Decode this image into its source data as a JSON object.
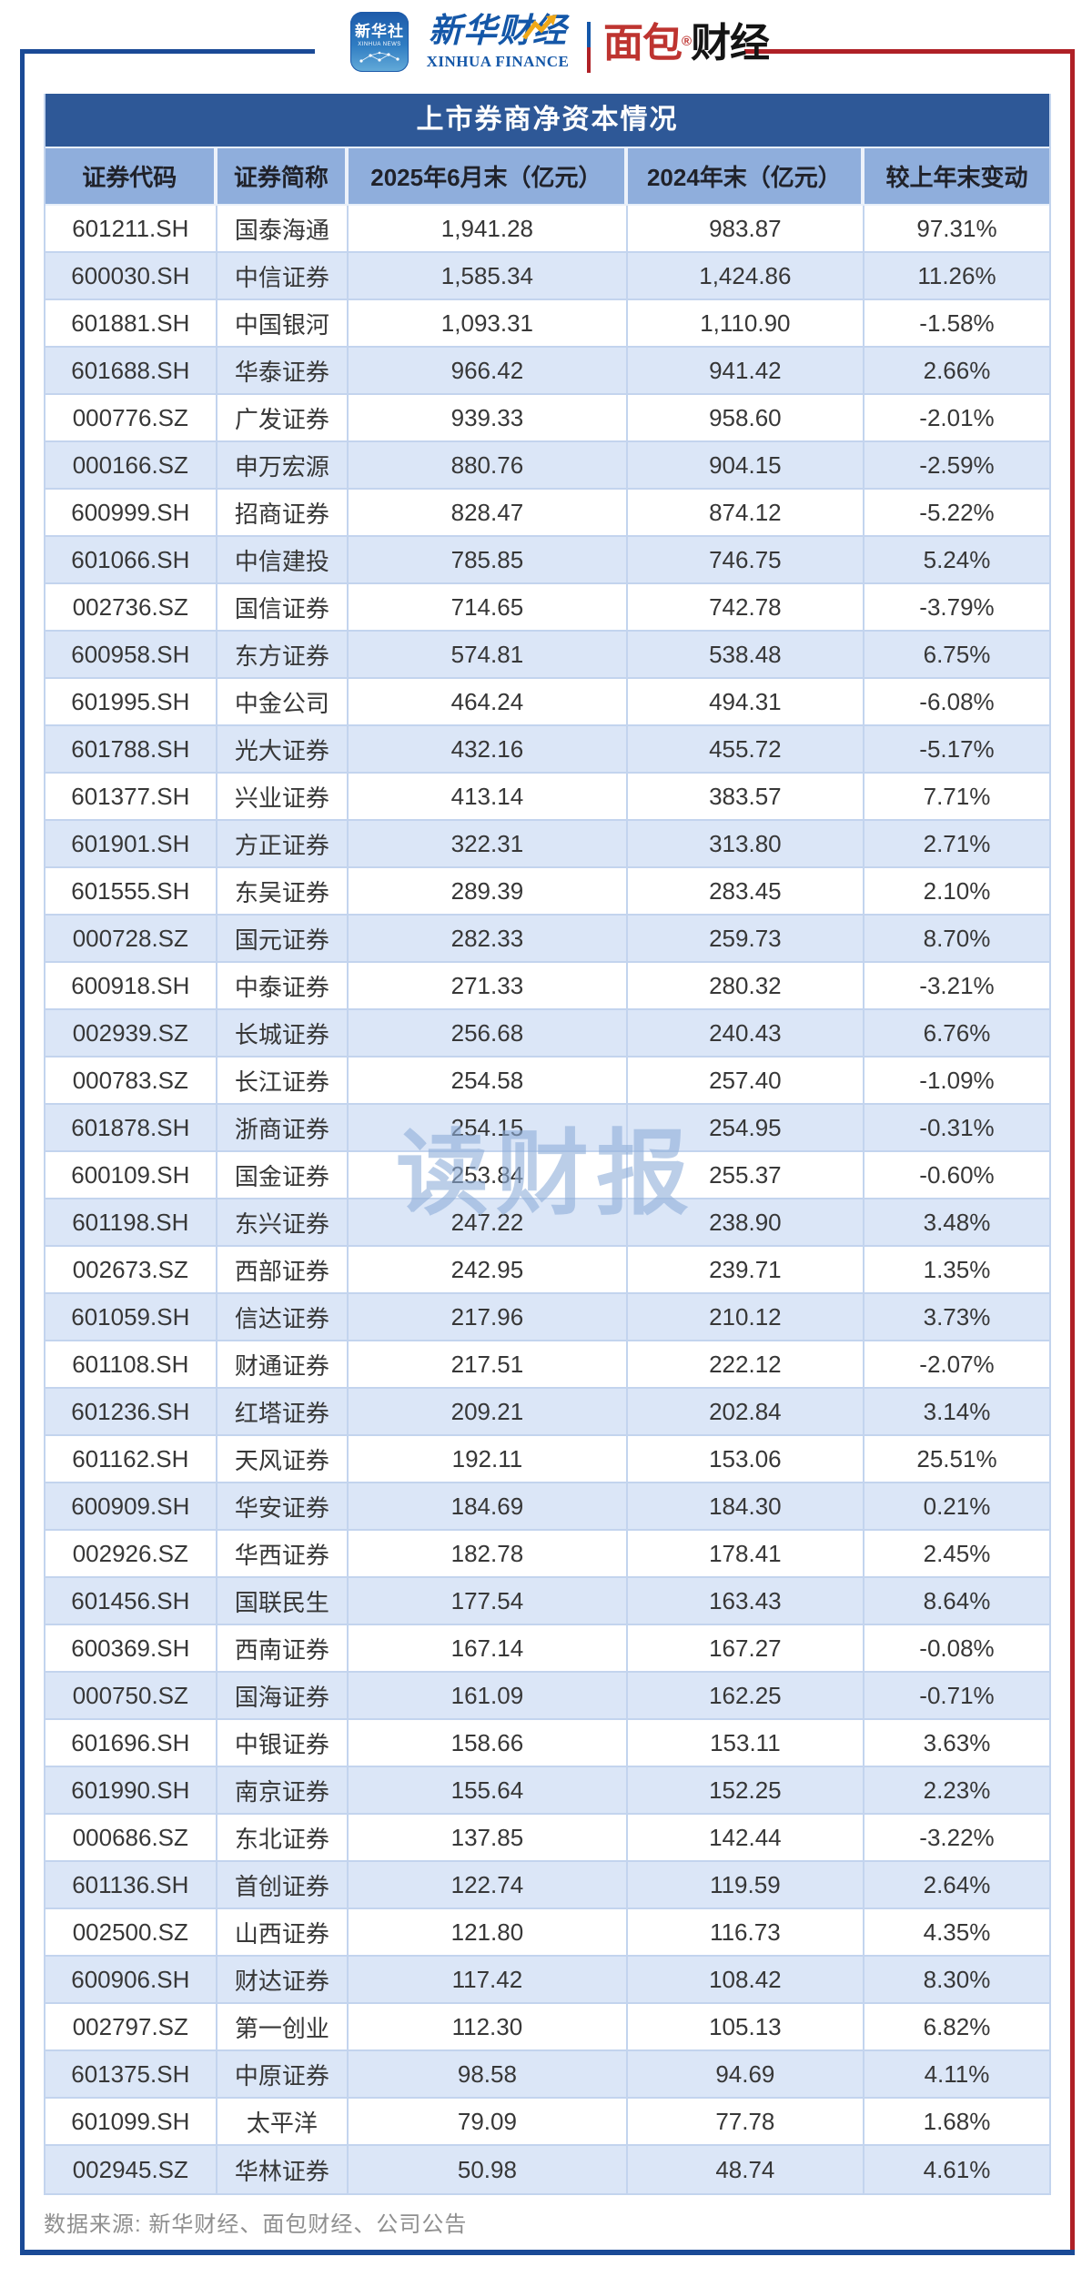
{
  "brand": {
    "xinhua_icon": {
      "line1": "新华社",
      "line2": "XINHUA NEWS"
    },
    "xinhua_finance": {
      "cn": "新华财经",
      "en": "XINHUA FINANCE"
    },
    "bread_finance": {
      "cn_red": "面包",
      "cn_black": "财经",
      "reg_mark": "®"
    }
  },
  "colors": {
    "title_bar": "#2E5897",
    "header_row": "#8FAEDC",
    "alt_row": "#DBE6F7",
    "grid": "#C3D4EE",
    "frame_blue": "#1A4A96",
    "frame_red": "#AF2026",
    "brand_blue": "#1457A8",
    "brand_red": "#BE3430",
    "watermark": "#8EADD8"
  },
  "watermark": "读财报",
  "footer": {
    "source": "数据来源: 新华财经、面包财经、公司公告"
  },
  "chart_data": {
    "type": "table",
    "title": "上市券商净资本情况",
    "columns": [
      "证券代码",
      "证券简称",
      "2025年6月末（亿元）",
      "2024年末（亿元）",
      "较上年末变动"
    ],
    "rows": [
      [
        "601211.SH",
        "国泰海通",
        "1,941.28",
        "983.87",
        "97.31%"
      ],
      [
        "600030.SH",
        "中信证券",
        "1,585.34",
        "1,424.86",
        "11.26%"
      ],
      [
        "601881.SH",
        "中国银河",
        "1,093.31",
        "1,110.90",
        "-1.58%"
      ],
      [
        "601688.SH",
        "华泰证券",
        "966.42",
        "941.42",
        "2.66%"
      ],
      [
        "000776.SZ",
        "广发证券",
        "939.33",
        "958.60",
        "-2.01%"
      ],
      [
        "000166.SZ",
        "申万宏源",
        "880.76",
        "904.15",
        "-2.59%"
      ],
      [
        "600999.SH",
        "招商证券",
        "828.47",
        "874.12",
        "-5.22%"
      ],
      [
        "601066.SH",
        "中信建投",
        "785.85",
        "746.75",
        "5.24%"
      ],
      [
        "002736.SZ",
        "国信证券",
        "714.65",
        "742.78",
        "-3.79%"
      ],
      [
        "600958.SH",
        "东方证券",
        "574.81",
        "538.48",
        "6.75%"
      ],
      [
        "601995.SH",
        "中金公司",
        "464.24",
        "494.31",
        "-6.08%"
      ],
      [
        "601788.SH",
        "光大证券",
        "432.16",
        "455.72",
        "-5.17%"
      ],
      [
        "601377.SH",
        "兴业证券",
        "413.14",
        "383.57",
        "7.71%"
      ],
      [
        "601901.SH",
        "方正证券",
        "322.31",
        "313.80",
        "2.71%"
      ],
      [
        "601555.SH",
        "东吴证券",
        "289.39",
        "283.45",
        "2.10%"
      ],
      [
        "000728.SZ",
        "国元证券",
        "282.33",
        "259.73",
        "8.70%"
      ],
      [
        "600918.SH",
        "中泰证券",
        "271.33",
        "280.32",
        "-3.21%"
      ],
      [
        "002939.SZ",
        "长城证券",
        "256.68",
        "240.43",
        "6.76%"
      ],
      [
        "000783.SZ",
        "长江证券",
        "254.58",
        "257.40",
        "-1.09%"
      ],
      [
        "601878.SH",
        "浙商证券",
        "254.15",
        "254.95",
        "-0.31%"
      ],
      [
        "600109.SH",
        "国金证券",
        "253.84",
        "255.37",
        "-0.60%"
      ],
      [
        "601198.SH",
        "东兴证券",
        "247.22",
        "238.90",
        "3.48%"
      ],
      [
        "002673.SZ",
        "西部证券",
        "242.95",
        "239.71",
        "1.35%"
      ],
      [
        "601059.SH",
        "信达证券",
        "217.96",
        "210.12",
        "3.73%"
      ],
      [
        "601108.SH",
        "财通证券",
        "217.51",
        "222.12",
        "-2.07%"
      ],
      [
        "601236.SH",
        "红塔证券",
        "209.21",
        "202.84",
        "3.14%"
      ],
      [
        "601162.SH",
        "天风证券",
        "192.11",
        "153.06",
        "25.51%"
      ],
      [
        "600909.SH",
        "华安证券",
        "184.69",
        "184.30",
        "0.21%"
      ],
      [
        "002926.SZ",
        "华西证券",
        "182.78",
        "178.41",
        "2.45%"
      ],
      [
        "601456.SH",
        "国联民生",
        "177.54",
        "163.43",
        "8.64%"
      ],
      [
        "600369.SH",
        "西南证券",
        "167.14",
        "167.27",
        "-0.08%"
      ],
      [
        "000750.SZ",
        "国海证券",
        "161.09",
        "162.25",
        "-0.71%"
      ],
      [
        "601696.SH",
        "中银证券",
        "158.66",
        "153.11",
        "3.63%"
      ],
      [
        "601990.SH",
        "南京证券",
        "155.64",
        "152.25",
        "2.23%"
      ],
      [
        "000686.SZ",
        "东北证券",
        "137.85",
        "142.44",
        "-3.22%"
      ],
      [
        "601136.SH",
        "首创证券",
        "122.74",
        "119.59",
        "2.64%"
      ],
      [
        "002500.SZ",
        "山西证券",
        "121.80",
        "116.73",
        "4.35%"
      ],
      [
        "600906.SH",
        "财达证券",
        "117.42",
        "108.42",
        "8.30%"
      ],
      [
        "002797.SZ",
        "第一创业",
        "112.30",
        "105.13",
        "6.82%"
      ],
      [
        "601375.SH",
        "中原证券",
        "98.58",
        "94.69",
        "4.11%"
      ],
      [
        "601099.SH",
        "太平洋",
        "79.09",
        "77.78",
        "1.68%"
      ],
      [
        "002945.SZ",
        "华林证券",
        "50.98",
        "48.74",
        "4.61%"
      ]
    ]
  }
}
